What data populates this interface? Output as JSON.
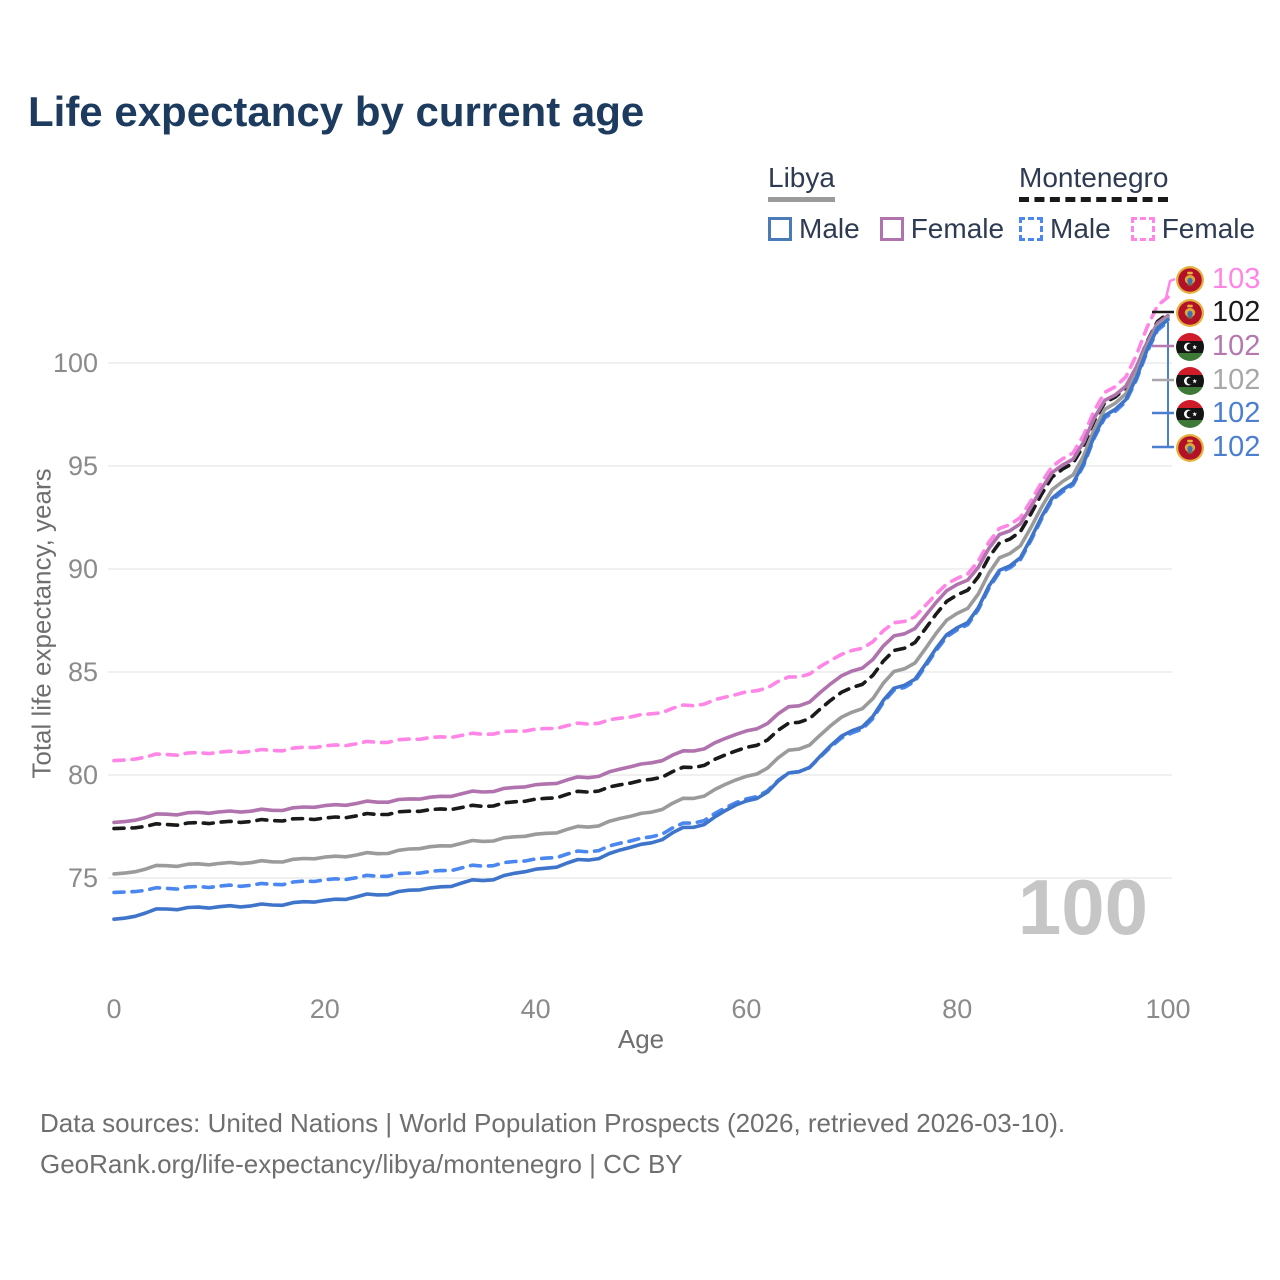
{
  "title": "Life expectancy by current age",
  "legend": {
    "groups": [
      {
        "label": "Libya",
        "underline": "solid",
        "items": [
          {
            "label": "Male"
          },
          {
            "label": "Female"
          }
        ]
      },
      {
        "label": "Montenegro",
        "underline": "dashed",
        "items": [
          {
            "label": "Male"
          },
          {
            "label": "Female"
          }
        ]
      }
    ]
  },
  "chart_data": {
    "type": "line",
    "title": "Life expectancy by current age",
    "xlabel": "Age",
    "ylabel": "Total life expectancy, years",
    "xlim": [
      0,
      100
    ],
    "ylim": [
      72.5,
      103.5
    ],
    "x_ticks": [
      0,
      20,
      40,
      60,
      80,
      100
    ],
    "y_ticks": [
      75,
      80,
      85,
      90,
      95,
      100
    ],
    "grid": "horizontal",
    "watermark": "100",
    "x": [
      0,
      5,
      10,
      15,
      20,
      25,
      30,
      35,
      40,
      45,
      50,
      55,
      60,
      65,
      70,
      75,
      80,
      85,
      90,
      95,
      100
    ],
    "series": [
      {
        "name": "Montenegro Female",
        "color": "#ff85e6",
        "dash": true,
        "values": [
          80.7,
          81.0,
          81.1,
          81.2,
          81.4,
          81.6,
          81.8,
          82.0,
          82.2,
          82.5,
          82.9,
          83.4,
          84.0,
          84.8,
          86.0,
          87.5,
          89.5,
          92.2,
          95.3,
          98.9,
          103.2
        ]
      },
      {
        "name": "Montenegro",
        "color": "#1a1a1a",
        "dash": true,
        "values": [
          77.4,
          77.6,
          77.7,
          77.8,
          77.9,
          78.1,
          78.3,
          78.5,
          78.8,
          79.2,
          79.7,
          80.4,
          81.3,
          82.6,
          84.2,
          86.2,
          88.7,
          91.5,
          94.8,
          98.4,
          102.4
        ]
      },
      {
        "name": "Libya Female",
        "color": "#b173ae",
        "dash": false,
        "values": [
          77.7,
          78.1,
          78.2,
          78.3,
          78.5,
          78.7,
          78.9,
          79.2,
          79.5,
          79.9,
          80.5,
          81.2,
          82.1,
          83.4,
          85.0,
          86.9,
          89.2,
          91.9,
          95.0,
          98.5,
          102.3
        ]
      },
      {
        "name": "Libya",
        "color": "#9b9b9b",
        "dash": false,
        "values": [
          75.2,
          75.6,
          75.7,
          75.8,
          76.0,
          76.2,
          76.5,
          76.8,
          77.1,
          77.5,
          78.1,
          78.9,
          79.9,
          81.3,
          83.0,
          85.2,
          87.8,
          90.8,
          94.2,
          98.1,
          102.2
        ]
      },
      {
        "name": "Montenegro Male",
        "color": "#4b87f0",
        "dash": true,
        "values": [
          74.3,
          74.5,
          74.6,
          74.7,
          74.9,
          75.1,
          75.3,
          75.6,
          75.9,
          76.3,
          76.9,
          77.7,
          78.8,
          80.2,
          82.0,
          84.3,
          87.0,
          90.1,
          93.7,
          97.7,
          102.0
        ]
      },
      {
        "name": "Libya Male",
        "color": "#3e74c9",
        "dash": false,
        "values": [
          73.0,
          73.5,
          73.6,
          73.7,
          73.9,
          74.2,
          74.5,
          74.9,
          75.4,
          75.9,
          76.6,
          77.5,
          78.7,
          80.2,
          82.1,
          84.4,
          87.1,
          90.2,
          93.8,
          97.8,
          102.1
        ]
      }
    ],
    "end_labels": [
      {
        "flag": "montenegro",
        "value": "103",
        "color": "#ff85e6"
      },
      {
        "flag": "montenegro",
        "value": "102",
        "color": "#1a1a1a"
      },
      {
        "flag": "libya",
        "value": "102",
        "color": "#b578b0"
      },
      {
        "flag": "libya",
        "value": "102",
        "color": "#a8a8a8"
      },
      {
        "flag": "libya",
        "value": "102",
        "color": "#4d7fd0"
      },
      {
        "flag": "montenegro",
        "value": "102",
        "color": "#4d7fd0"
      }
    ]
  },
  "footer": {
    "line1": "Data sources: United Nations | World Population Prospects (2026, retrieved 2026-03-10).",
    "line2": "GeoRank.org/life-expectancy/libya/montenegro | CC BY"
  }
}
